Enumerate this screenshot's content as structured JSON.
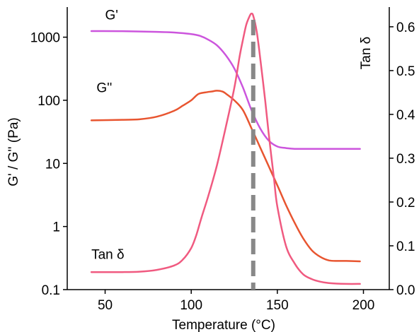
{
  "chart_data": {
    "type": "line",
    "xlabel": "Temperature (°C)",
    "ylabel_left": "G' / G'' (Pa)",
    "ylabel_right": "Tan δ",
    "xlim": [
      28,
      215
    ],
    "ylim_left": [
      0.1,
      3000
    ],
    "ylim_right": [
      0.0,
      0.645
    ],
    "left_scale": "log",
    "right_scale": "linear",
    "grid": false,
    "legend": "inline-labels",
    "x_ticks": [
      {
        "value": 50,
        "label": "50"
      },
      {
        "value": 100,
        "label": "100"
      },
      {
        "value": 150,
        "label": "150"
      },
      {
        "value": 200,
        "label": "200"
      }
    ],
    "y_left_ticks": [
      {
        "value": 0.1,
        "label": "0.1"
      },
      {
        "value": 1,
        "label": "1"
      },
      {
        "value": 10,
        "label": "10"
      },
      {
        "value": 100,
        "label": "100"
      },
      {
        "value": 1000,
        "label": "1000"
      }
    ],
    "y_right_ticks": [
      {
        "value": 0.0,
        "label": "0.0"
      },
      {
        "value": 0.1,
        "label": "0.1"
      },
      {
        "value": 0.2,
        "label": "0.2"
      },
      {
        "value": 0.3,
        "label": "0.3"
      },
      {
        "value": 0.4,
        "label": "0.4"
      },
      {
        "value": 0.5,
        "label": "0.5"
      },
      {
        "value": 0.6,
        "label": "0.6"
      }
    ],
    "series": [
      {
        "name": "G'",
        "axis": "left",
        "color": "#cc55dd",
        "label_at": [
          50,
          1900
        ],
        "x": [
          42,
          60,
          80,
          90,
          100,
          105,
          110,
          115,
          120,
          125,
          130,
          135,
          140,
          145,
          150,
          155,
          160,
          170,
          180,
          198
        ],
        "y": [
          1250,
          1245,
          1215,
          1185,
          1120,
          1050,
          910,
          740,
          520,
          320,
          160,
          70,
          36,
          23,
          18.5,
          17.5,
          17,
          17,
          17,
          17
        ]
      },
      {
        "name": "G''",
        "axis": "left",
        "color": "#e85530",
        "label_at": [
          45,
          135
        ],
        "x": [
          42,
          60,
          70,
          80,
          90,
          95,
          100,
          104,
          108,
          112,
          115,
          118,
          120,
          125,
          130,
          135,
          140,
          145,
          150,
          155,
          160,
          165,
          170,
          175,
          180,
          185,
          190,
          198
        ],
        "y": [
          48,
          49,
          50,
          55,
          68,
          82,
          100,
          125,
          133,
          138,
          142,
          138,
          128,
          100,
          70,
          36,
          18,
          9,
          4.5,
          2.2,
          1.15,
          0.65,
          0.42,
          0.33,
          0.29,
          0.285,
          0.285,
          0.28
        ]
      },
      {
        "name": "Tan δ",
        "axis": "right",
        "color": "#f05a80",
        "label_at": [
          42,
          0.07
        ],
        "x": [
          42,
          60,
          70,
          80,
          90,
          95,
          100,
          103,
          106,
          110,
          115,
          120,
          125,
          128,
          130,
          132,
          134,
          135,
          136,
          138,
          140,
          143,
          145,
          148,
          150,
          155,
          160,
          165,
          170,
          175,
          180,
          190,
          198
        ],
        "y": [
          0.04,
          0.04,
          0.041,
          0.045,
          0.055,
          0.068,
          0.095,
          0.125,
          0.165,
          0.215,
          0.285,
          0.37,
          0.46,
          0.53,
          0.57,
          0.605,
          0.625,
          0.63,
          0.625,
          0.59,
          0.53,
          0.43,
          0.355,
          0.255,
          0.19,
          0.1,
          0.06,
          0.035,
          0.024,
          0.018,
          0.015,
          0.013,
          0.013
        ]
      }
    ],
    "annotations": [
      {
        "type": "vertical-dashed-line",
        "x": 136,
        "color": "#888888"
      }
    ]
  }
}
